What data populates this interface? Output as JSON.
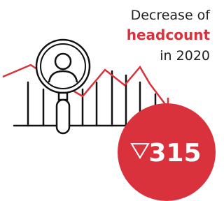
{
  "caption": {
    "line1": "Decrease of",
    "highlight": "headcount",
    "line3": "in 2020"
  },
  "badge": {
    "value": "315"
  }
}
